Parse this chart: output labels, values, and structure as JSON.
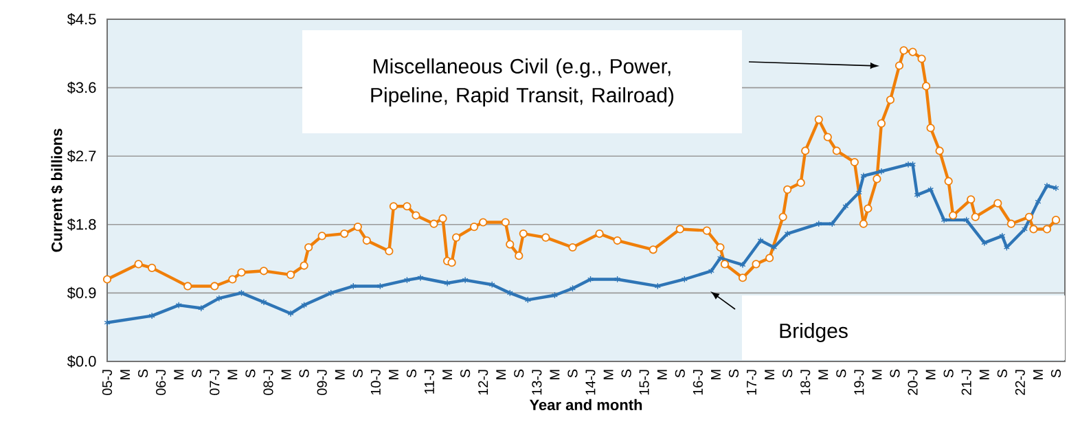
{
  "chart_data": {
    "type": "line",
    "xlabel": "Year and month",
    "ylabel": "Current $ billions",
    "xlim": [
      "2005-01",
      "2022-11"
    ],
    "ylim": [
      0,
      4.5
    ],
    "yticks": [
      {
        "value": 0,
        "label": "$0.0"
      },
      {
        "value": 0.9,
        "label": "$0.9"
      },
      {
        "value": 1.8,
        "label": "$1.8"
      },
      {
        "value": 2.7,
        "label": "$2.7"
      },
      {
        "value": 3.6,
        "label": "$3.6"
      },
      {
        "value": 4.5,
        "label": "$4.5"
      }
    ],
    "xticks": [
      {
        "value": "2005-01",
        "label": "05-J"
      },
      {
        "value": "2005-05",
        "label": "M"
      },
      {
        "value": "2005-09",
        "label": "S"
      },
      {
        "value": "2006-01",
        "label": "06-J"
      },
      {
        "value": "2006-05",
        "label": "M"
      },
      {
        "value": "2006-09",
        "label": "S"
      },
      {
        "value": "2007-01",
        "label": "07-J"
      },
      {
        "value": "2007-05",
        "label": "M"
      },
      {
        "value": "2007-09",
        "label": "S"
      },
      {
        "value": "2008-01",
        "label": "08-J"
      },
      {
        "value": "2008-05",
        "label": "M"
      },
      {
        "value": "2008-09",
        "label": "S"
      },
      {
        "value": "2009-01",
        "label": "09-J"
      },
      {
        "value": "2009-05",
        "label": "M"
      },
      {
        "value": "2009-09",
        "label": "S"
      },
      {
        "value": "2010-01",
        "label": "10-J"
      },
      {
        "value": "2010-05",
        "label": "M"
      },
      {
        "value": "2010-09",
        "label": "S"
      },
      {
        "value": "2011-01",
        "label": "11-J"
      },
      {
        "value": "2011-05",
        "label": "M"
      },
      {
        "value": "2011-09",
        "label": "S"
      },
      {
        "value": "2012-01",
        "label": "12-J"
      },
      {
        "value": "2012-05",
        "label": "M"
      },
      {
        "value": "2012-09",
        "label": "S"
      },
      {
        "value": "2013-01",
        "label": "13-J"
      },
      {
        "value": "2013-05",
        "label": "M"
      },
      {
        "value": "2013-09",
        "label": "S"
      },
      {
        "value": "2014-01",
        "label": "14-J"
      },
      {
        "value": "2014-05",
        "label": "M"
      },
      {
        "value": "2014-09",
        "label": "S"
      },
      {
        "value": "2015-01",
        "label": "15-J"
      },
      {
        "value": "2015-05",
        "label": "M"
      },
      {
        "value": "2015-09",
        "label": "S"
      },
      {
        "value": "2016-01",
        "label": "16-J"
      },
      {
        "value": "2016-05",
        "label": "M"
      },
      {
        "value": "2016-09",
        "label": "S"
      },
      {
        "value": "2017-01",
        "label": "17-J"
      },
      {
        "value": "2017-05",
        "label": "M"
      },
      {
        "value": "2017-09",
        "label": "S"
      },
      {
        "value": "2018-01",
        "label": "18-J"
      },
      {
        "value": "2018-05",
        "label": "M"
      },
      {
        "value": "2018-09",
        "label": "S"
      },
      {
        "value": "2019-01",
        "label": "19-J"
      },
      {
        "value": "2019-05",
        "label": "M"
      },
      {
        "value": "2019-09",
        "label": "S"
      },
      {
        "value": "2020-01",
        "label": "20-J"
      },
      {
        "value": "2020-05",
        "label": "M"
      },
      {
        "value": "2020-09",
        "label": "S"
      },
      {
        "value": "2021-01",
        "label": "21-J"
      },
      {
        "value": "2021-05",
        "label": "M"
      },
      {
        "value": "2021-09",
        "label": "S"
      },
      {
        "value": "2022-01",
        "label": "22-J"
      },
      {
        "value": "2022-05",
        "label": "M"
      },
      {
        "value": "2022-09",
        "label": "S"
      }
    ],
    "grid": "y",
    "annotations": [
      "Miscellaneous Civil (e.g., Power, Pipeline, Rapid Transit, Railroad)",
      "Bridges"
    ],
    "series": [
      {
        "color": "#f07f09",
        "marker": "circle",
        "x": [
          "2005-01",
          "2005-08",
          "2005-11",
          "2006-07",
          "2007-01",
          "2007-05",
          "2007-07",
          "2007-12",
          "2008-06",
          "2008-09",
          "2008-10",
          "2009-01",
          "2009-06",
          "2009-09",
          "2009-11",
          "2010-04",
          "2010-05",
          "2010-08",
          "2010-10",
          "2011-02",
          "2011-04",
          "2011-05",
          "2011-06",
          "2011-07",
          "2011-11",
          "2012-01",
          "2012-06",
          "2012-07",
          "2012-09",
          "2012-10",
          "2013-03",
          "2013-09",
          "2014-03",
          "2014-07",
          "2015-03",
          "2015-09",
          "2016-03",
          "2016-06",
          "2016-07",
          "2016-11",
          "2017-02",
          "2017-05",
          "2017-08",
          "2017-09",
          "2017-12",
          "2018-01",
          "2018-04",
          "2018-06",
          "2018-08",
          "2018-12",
          "2019-02",
          "2019-03",
          "2019-05",
          "2019-06",
          "2019-08",
          "2019-10",
          "2019-11",
          "2020-01",
          "2020-03",
          "2020-04",
          "2020-05",
          "2020-07",
          "2020-09",
          "2020-10",
          "2021-02",
          "2021-03",
          "2021-08",
          "2021-11",
          "2022-03",
          "2022-04",
          "2022-07",
          "2022-09"
        ],
        "values": [
          1.08,
          1.28,
          1.23,
          0.99,
          0.99,
          1.08,
          1.17,
          1.19,
          1.14,
          1.26,
          1.5,
          1.65,
          1.68,
          1.77,
          1.59,
          1.45,
          2.04,
          2.04,
          1.92,
          1.81,
          1.88,
          1.32,
          1.3,
          1.63,
          1.77,
          1.83,
          1.83,
          1.54,
          1.39,
          1.68,
          1.63,
          1.5,
          1.68,
          1.59,
          1.47,
          1.74,
          1.72,
          1.5,
          1.28,
          1.1,
          1.28,
          1.36,
          1.9,
          2.26,
          2.35,
          2.77,
          3.18,
          2.95,
          2.77,
          2.62,
          1.81,
          2.01,
          2.4,
          3.13,
          3.44,
          3.89,
          4.09,
          4.07,
          3.98,
          3.62,
          3.07,
          2.77,
          2.37,
          1.92,
          2.13,
          1.9,
          2.08,
          1.81,
          1.9,
          1.74,
          1.74,
          1.86
        ]
      },
      {
        "color": "#2e75b6",
        "marker": "cross",
        "x": [
          "2005-01",
          "2005-11",
          "2006-05",
          "2006-10",
          "2007-02",
          "2007-07",
          "2007-12",
          "2008-06",
          "2008-09",
          "2009-03",
          "2009-08",
          "2010-02",
          "2010-08",
          "2010-11",
          "2011-05",
          "2011-09",
          "2012-03",
          "2012-07",
          "2012-11",
          "2013-05",
          "2013-09",
          "2014-01",
          "2014-07",
          "2015-04",
          "2015-10",
          "2016-04",
          "2016-06",
          "2016-11",
          "2017-03",
          "2017-06",
          "2017-09",
          "2018-04",
          "2018-07",
          "2018-10",
          "2019-01",
          "2019-02",
          "2019-06",
          "2019-12",
          "2020-01",
          "2020-02",
          "2020-05",
          "2020-08",
          "2021-01",
          "2021-05",
          "2021-09",
          "2021-10",
          "2022-02",
          "2022-05",
          "2022-07",
          "2022-09"
        ],
        "values": [
          0.51,
          0.6,
          0.74,
          0.7,
          0.83,
          0.9,
          0.78,
          0.63,
          0.74,
          0.9,
          0.99,
          0.99,
          1.07,
          1.1,
          1.03,
          1.07,
          1.01,
          0.9,
          0.81,
          0.87,
          0.96,
          1.08,
          1.08,
          0.99,
          1.08,
          1.19,
          1.36,
          1.27,
          1.59,
          1.5,
          1.68,
          1.81,
          1.81,
          2.04,
          2.22,
          2.44,
          2.5,
          2.59,
          2.59,
          2.19,
          2.26,
          1.86,
          1.86,
          1.56,
          1.65,
          1.5,
          1.74,
          2.1,
          2.31,
          2.28
        ]
      }
    ]
  }
}
